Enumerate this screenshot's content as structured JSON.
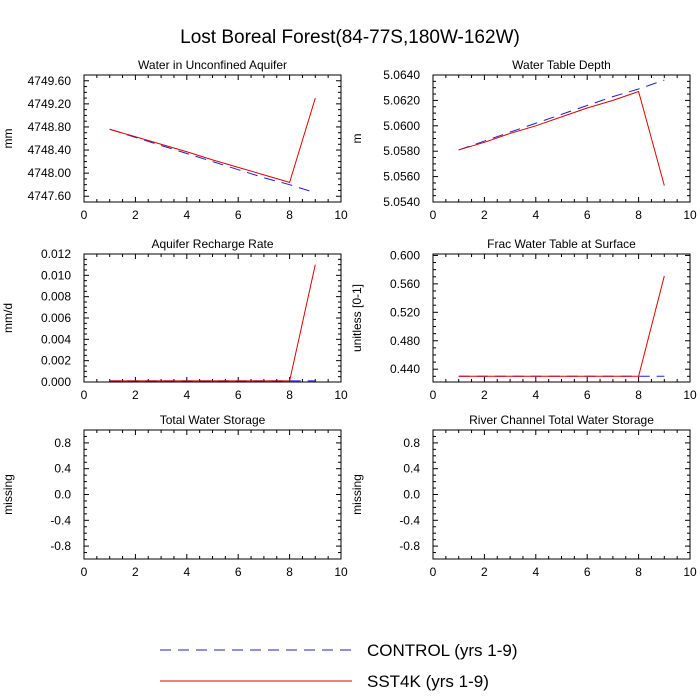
{
  "figure": {
    "title": "Lost Boreal Forest(84-77S,180W-162W)"
  },
  "legend": {
    "entries": [
      {
        "label": "CONTROL (yrs 1-9)",
        "color": "#1f1fd6",
        "dash": true
      },
      {
        "label": "SST4K (yrs 1-9)",
        "color": "#e00000",
        "dash": false
      }
    ]
  },
  "chart_data": [
    {
      "type": "line",
      "title": "Water in Unconfined Aquifer",
      "ylabel": "mm",
      "xlim": [
        0,
        10
      ],
      "ylim": [
        4747.5,
        4749.7
      ],
      "xticks": [
        "0",
        "2",
        "4",
        "6",
        "8",
        "10"
      ],
      "yticks": [
        4747.6,
        4748.0,
        4748.4,
        4748.8,
        4749.2,
        4749.6
      ],
      "ytick_labels": [
        "4747.60",
        "4748.00",
        "4748.40",
        "4748.80",
        "4749.20",
        "4749.60"
      ],
      "x": [
        1,
        2,
        3,
        4,
        5,
        6,
        7,
        8,
        9
      ],
      "series": [
        {
          "name": "CONTROL (yrs 1-9)",
          "values": [
            4748.76,
            4748.62,
            4748.48,
            4748.34,
            4748.2,
            4748.06,
            4747.92,
            4747.8,
            4747.66
          ]
        },
        {
          "name": "SST4K (yrs 1-9)",
          "values": [
            4748.76,
            4748.63,
            4748.5,
            4748.37,
            4748.23,
            4748.1,
            4747.97,
            4747.84,
            4749.3
          ]
        }
      ]
    },
    {
      "type": "line",
      "title": "Water Table Depth",
      "ylabel": "m",
      "xlim": [
        0,
        10
      ],
      "ylim": [
        5.054,
        5.064
      ],
      "xticks": [
        "0",
        "2",
        "4",
        "6",
        "8",
        "10"
      ],
      "yticks": [
        5.054,
        5.056,
        5.058,
        5.06,
        5.062,
        5.064
      ],
      "ytick_labels": [
        "5.0540",
        "5.0560",
        "5.0580",
        "5.0600",
        "5.0620",
        "5.0640"
      ],
      "x": [
        1,
        2,
        3,
        4,
        5,
        6,
        7,
        8,
        9
      ],
      "series": [
        {
          "name": "CONTROL (yrs 1-9)",
          "values": [
            5.0581,
            5.0588,
            5.0595,
            5.0602,
            5.0609,
            5.0616,
            5.0623,
            5.0629,
            5.0636
          ]
        },
        {
          "name": "SST4K (yrs 1-9)",
          "values": [
            5.0581,
            5.0587,
            5.0594,
            5.06,
            5.0607,
            5.0614,
            5.062,
            5.0627,
            5.0553
          ]
        }
      ]
    },
    {
      "type": "line",
      "title": "Aquifer Recharge Rate",
      "ylabel": "mm/d",
      "xlim": [
        0,
        10
      ],
      "ylim": [
        0,
        0.012
      ],
      "xticks": [
        "0",
        "2",
        "4",
        "6",
        "8",
        "10"
      ],
      "yticks": [
        0,
        0.002,
        0.004,
        0.006,
        0.008,
        0.01,
        0.012
      ],
      "ytick_labels": [
        "0.000",
        "0.002",
        "0.004",
        "0.006",
        "0.008",
        "0.010",
        "0.012"
      ],
      "x": [
        1,
        2,
        3,
        4,
        5,
        6,
        7,
        8,
        9
      ],
      "series": [
        {
          "name": "CONTROL (yrs 1-9)",
          "values": [
            0.0001,
            0.0001,
            0.0001,
            0.0001,
            0.0001,
            0.0001,
            0.0001,
            0.0001,
            0.0001
          ]
        },
        {
          "name": "SST4K (yrs 1-9)",
          "values": [
            0.0001,
            0.0001,
            0.0001,
            0.0001,
            0.0001,
            0.0001,
            0.0001,
            0.0001,
            0.011
          ]
        }
      ]
    },
    {
      "type": "line",
      "title": "Frac Water Table at Surface",
      "ylabel": "unitless [0-1]",
      "xlim": [
        0,
        10
      ],
      "ylim": [
        0.422,
        0.602
      ],
      "xticks": [
        "0",
        "2",
        "4",
        "6",
        "8",
        "10"
      ],
      "yticks": [
        0.44,
        0.48,
        0.52,
        0.56,
        0.6
      ],
      "ytick_labels": [
        "0.440",
        "0.480",
        "0.520",
        "0.560",
        "0.600"
      ],
      "x": [
        1,
        2,
        3,
        4,
        5,
        6,
        7,
        8,
        9
      ],
      "series": [
        {
          "name": "CONTROL (yrs 1-9)",
          "values": [
            0.43,
            0.43,
            0.43,
            0.43,
            0.43,
            0.43,
            0.43,
            0.43,
            0.43
          ]
        },
        {
          "name": "SST4K (yrs 1-9)",
          "values": [
            0.43,
            0.43,
            0.43,
            0.43,
            0.43,
            0.43,
            0.43,
            0.43,
            0.571
          ]
        }
      ]
    },
    {
      "type": "line",
      "title": "Total Water Storage",
      "ylabel": "missing",
      "xlim": [
        0,
        10
      ],
      "ylim": [
        -1,
        1
      ],
      "xticks": [
        "0",
        "2",
        "4",
        "6",
        "8",
        "10"
      ],
      "yticks": [
        -0.8,
        -0.4,
        0,
        0.4,
        0.8
      ],
      "ytick_labels": [
        "-0.8",
        "-0.4",
        "0.0",
        "0.4",
        "0.8"
      ],
      "x": [],
      "series": []
    },
    {
      "type": "line",
      "title": "River Channel Total Water Storage",
      "ylabel": "missing",
      "xlim": [
        0,
        10
      ],
      "ylim": [
        -1,
        1
      ],
      "xticks": [
        "0",
        "2",
        "4",
        "6",
        "8",
        "10"
      ],
      "yticks": [
        -0.8,
        -0.4,
        0,
        0.4,
        0.8
      ],
      "ytick_labels": [
        "-0.8",
        "-0.4",
        "0.0",
        "0.4",
        "0.8"
      ],
      "x": [],
      "series": []
    }
  ]
}
